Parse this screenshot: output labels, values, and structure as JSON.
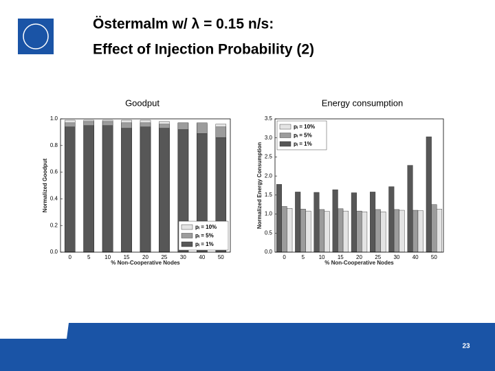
{
  "slide": {
    "title_lines": [
      "Östermalm w/ λ = 0.15 n/s:",
      "Effect of Injection Probability (2)"
    ],
    "captions": [
      "Goodput",
      "Energy consumption"
    ],
    "page_number": "23"
  },
  "chart_data": [
    {
      "type": "bar",
      "barmode": "overlay",
      "legend": "lower right",
      "ylabel": "Normalized Goodput",
      "xlabel": "% Non-Cooperative Nodes",
      "categories": [
        "0",
        "5",
        "10",
        "15",
        "20",
        "25",
        "30",
        "40",
        "50"
      ],
      "ylim": [
        0,
        1
      ],
      "yticks": [
        {
          "value": 0,
          "label": "0.0"
        },
        0.2,
        0.4,
        0.6,
        0.8,
        {
          "value": 1,
          "label": "1.0"
        }
      ],
      "series": [
        {
          "name": "pᵢ = 10%",
          "color": "#e4e4e4",
          "values": [
            0.99,
            0.99,
            0.99,
            0.99,
            0.99,
            0.98,
            0.97,
            0.96,
            0.96
          ]
        },
        {
          "name": "pᵢ = 5%",
          "color": "#9c9c9c",
          "values": [
            0.97,
            0.98,
            0.98,
            0.97,
            0.97,
            0.96,
            0.97,
            0.97,
            0.94
          ]
        },
        {
          "name": "pᵢ = 1%",
          "color": "#575757",
          "values": [
            0.94,
            0.95,
            0.95,
            0.93,
            0.94,
            0.93,
            0.92,
            0.89,
            0.86
          ]
        }
      ]
    },
    {
      "type": "bar",
      "barmode": "group",
      "legend": "upper left",
      "ylabel": "Normalized Energy Consumption",
      "xlabel": "% Non-Cooperative Nodes",
      "categories": [
        "0",
        "5",
        "10",
        "15",
        "20",
        "25",
        "30",
        "40",
        "50"
      ],
      "ylim": [
        0,
        3.5
      ],
      "yticks": [
        {
          "value": 0,
          "label": "0.0"
        },
        0.5,
        {
          "value": 1,
          "label": "1.0"
        },
        1.5,
        {
          "value": 2,
          "label": "2.0"
        },
        2.5,
        {
          "value": 3,
          "label": "3.0"
        },
        3.5
      ],
      "series": [
        {
          "name": "pᵢ = 10%",
          "color": "#e4e4e4",
          "values": [
            1.15,
            1.08,
            1.07,
            1.08,
            1.06,
            1.06,
            1.1,
            1.09,
            1.13
          ]
        },
        {
          "name": "pᵢ = 5%",
          "color": "#9c9c9c",
          "values": [
            1.2,
            1.13,
            1.12,
            1.14,
            1.08,
            1.12,
            1.12,
            1.1,
            1.25
          ]
        },
        {
          "name": "pᵢ = 1%",
          "color": "#575757",
          "values": [
            1.78,
            1.58,
            1.57,
            1.64,
            1.56,
            1.58,
            1.72,
            2.28,
            3.03
          ]
        }
      ]
    }
  ]
}
